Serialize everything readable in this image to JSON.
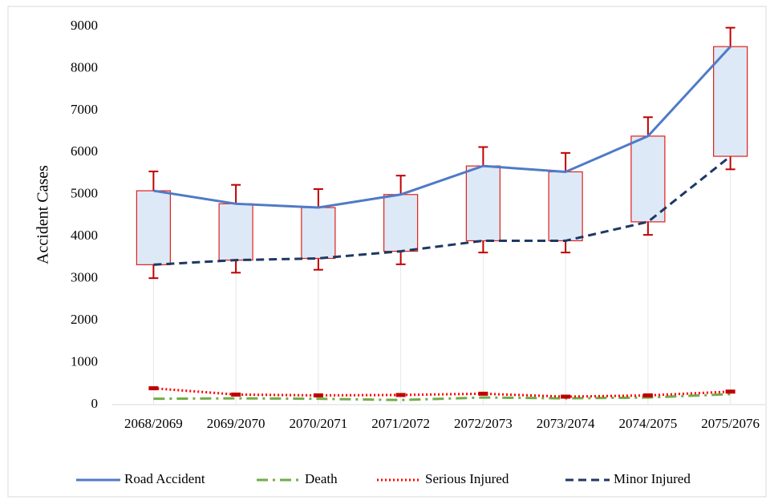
{
  "chart_data": {
    "type": "line",
    "y_label": "Accident Cases",
    "categories": [
      "2068/2069",
      "2069/2070",
      "2070/2071",
      "2071/2072",
      "2072/2073",
      "2073/2074",
      "2074/2075",
      "2075/2076"
    ],
    "series": [
      {
        "name": "Road Accident",
        "color": "#4f7ac7",
        "dash": "solid",
        "values": [
          5090,
          4780,
          4690,
          5000,
          5680,
          5540,
          6390,
          8520
        ]
      },
      {
        "name": "Death",
        "color": "#70ad47",
        "dash": "dash-dot",
        "values": [
          140,
          150,
          140,
          110,
          170,
          150,
          170,
          250
        ]
      },
      {
        "name": "Serious Injured",
        "color": "#ff0000",
        "dash": "dotted",
        "values": [
          390,
          240,
          220,
          230,
          260,
          190,
          220,
          310
        ]
      },
      {
        "name": "Minor Injured",
        "color": "#1f3864",
        "dash": "dashed",
        "values": [
          3330,
          3440,
          3480,
          3650,
          3900,
          3900,
          4350,
          5910
        ]
      }
    ],
    "whiskers": {
      "color": "#c00000",
      "high": [
        5550,
        5230,
        5130,
        5450,
        6130,
        5990,
        6840,
        8970
      ],
      "low": [
        3010,
        3140,
        3210,
        3340,
        3620,
        3620,
        4040,
        5600
      ]
    },
    "box_fill": "#dde9f6",
    "box_stroke": "#e0201b",
    "ylim": [
      0,
      9000
    ],
    "yticks": [
      0,
      1000,
      2000,
      3000,
      4000,
      5000,
      6000,
      7000,
      8000,
      9000
    ],
    "legend": "bottom"
  }
}
